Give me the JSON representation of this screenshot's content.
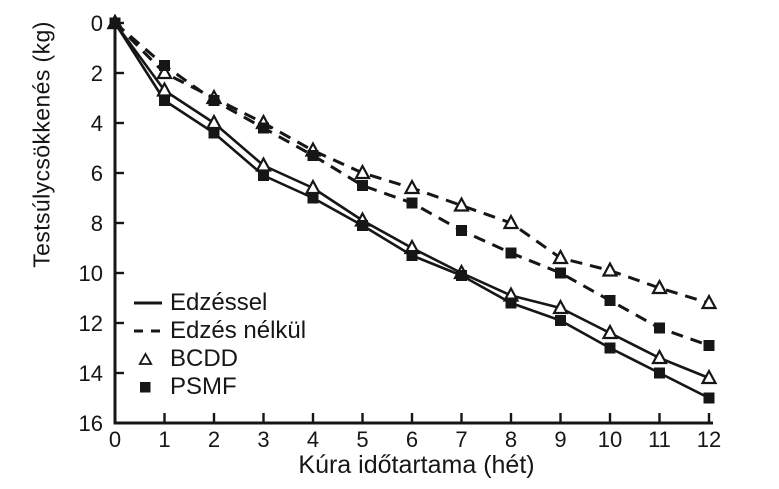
{
  "figure": {
    "background": "#ffffff",
    "ink_color": "#161616"
  },
  "chart_data": {
    "type": "line",
    "title": "",
    "xlabel": "Kúra időtartama (hét)",
    "ylabel": "Testsúlycsökkenés (kg)",
    "xlim": [
      0,
      12
    ],
    "ylim": [
      0,
      16
    ],
    "y_axis_inverted": true,
    "grid": false,
    "x_ticks": [
      0,
      1,
      2,
      3,
      4,
      5,
      6,
      7,
      8,
      9,
      10,
      11,
      12
    ],
    "y_ticks": [
      0,
      2,
      4,
      6,
      8,
      10,
      12,
      14,
      16
    ],
    "x": [
      0,
      1,
      2,
      3,
      4,
      5,
      6,
      7,
      8,
      9,
      10,
      11,
      12
    ],
    "series": [
      {
        "name": "BCDD Edzéssel",
        "diet": "BCDD",
        "condition": "Edzéssel",
        "linestyle": "solid",
        "marker": "open-triangle",
        "values": [
          0,
          2.7,
          4.0,
          5.7,
          6.6,
          7.9,
          9.0,
          10.0,
          10.9,
          11.4,
          12.4,
          13.4,
          14.2
        ]
      },
      {
        "name": "PSMF Edzéssel",
        "diet": "PSMF",
        "condition": "Edzéssel",
        "linestyle": "solid",
        "marker": "filled-square",
        "values": [
          0,
          3.1,
          4.4,
          6.1,
          7.0,
          8.1,
          9.3,
          10.1,
          11.2,
          11.9,
          13.0,
          14.0,
          15.0
        ]
      },
      {
        "name": "BCDD Edzés nélkül",
        "diet": "BCDD",
        "condition": "Edzés nélkül",
        "linestyle": "dashed",
        "marker": "open-triangle",
        "values": [
          0,
          2.0,
          3.0,
          4.0,
          5.1,
          6.0,
          6.6,
          7.3,
          8.0,
          9.4,
          9.9,
          10.6,
          11.2
        ]
      },
      {
        "name": "PSMF Edzés nélkül",
        "diet": "PSMF",
        "condition": "Edzés nélkül",
        "linestyle": "dashed",
        "marker": "filled-square",
        "values": [
          0,
          1.7,
          3.1,
          4.2,
          5.3,
          6.5,
          7.2,
          8.3,
          9.2,
          10.0,
          11.1,
          12.2,
          12.9
        ]
      }
    ],
    "legend": {
      "position": "inside-lower-left",
      "entries": [
        {
          "label": "Edzéssel",
          "symbol": "solid-line"
        },
        {
          "label": "Edzés nélkül",
          "symbol": "dashed-line"
        },
        {
          "label": "BCDD",
          "symbol": "open-triangle"
        },
        {
          "label": "PSMF",
          "symbol": "filled-square"
        }
      ]
    }
  }
}
